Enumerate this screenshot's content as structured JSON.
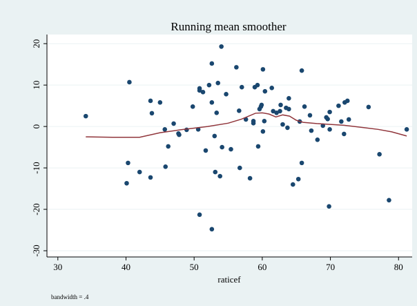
{
  "chart_data": {
    "type": "scatter",
    "title": "Running mean smoother",
    "x_label": "raticef",
    "note": "bandwidth = .4",
    "xlim": [
      28.4,
      82
    ],
    "ylim": [
      -31.5,
      22.2
    ],
    "xticks": [
      30,
      40,
      50,
      60,
      70,
      80
    ],
    "yticks": [
      -30,
      -20,
      -10,
      0,
      10,
      20
    ],
    "grid": true,
    "series": [
      {
        "type": "scatter",
        "color": "#1a476f",
        "x": [
          34.1,
          40.5,
          40.3,
          40.1,
          42.0,
          43.6,
          43.8,
          43.6,
          45.0,
          45.7,
          45.8,
          46.2,
          47.0,
          47.7,
          47.8,
          48.9,
          49.8,
          50.6,
          50.8,
          50.8,
          51.3,
          50.8,
          51.7,
          52.2,
          52.6,
          52.6,
          52.6,
          53.0,
          53.1,
          53.3,
          53.5,
          53.8,
          54.0,
          54.1,
          54.7,
          55.4,
          56.2,
          56.6,
          56.7,
          57.0,
          57.6,
          58.2,
          58.7,
          58.7,
          58.9,
          59.3,
          59.4,
          59.6,
          59.8,
          59.9,
          60.1,
          60.1,
          60.4,
          60.3,
          61.4,
          61.6,
          62.1,
          62.6,
          62.7,
          63.0,
          63.5,
          63.9,
          63.7,
          63.9,
          64.5,
          65.3,
          65.5,
          65.8,
          65.8,
          66.2,
          67.0,
          67.2,
          68.1,
          68.9,
          69.4,
          69.6,
          69.8,
          69.9,
          69.9,
          71.2,
          71.6,
          72.1,
          72.5,
          72.0,
          72.7,
          75.6,
          77.2,
          78.6,
          81.2
        ],
        "values": [
          2.5,
          10.7,
          -8.8,
          -13.7,
          -11,
          6.2,
          3.2,
          -12.3,
          5.8,
          -0.7,
          -9.7,
          -4.8,
          0.7,
          -1.7,
          -2,
          -0.8,
          4.8,
          -0.7,
          9.2,
          8.7,
          8.3,
          -21.3,
          -5.8,
          10,
          5.8,
          15.2,
          -24.8,
          -2.3,
          -11,
          3.3,
          10.5,
          -12,
          19.3,
          -5,
          7.8,
          -5.5,
          14.3,
          3.8,
          -10,
          9.5,
          1.7,
          -12.5,
          0.8,
          1.3,
          9.5,
          10,
          -4.8,
          4.2,
          4.8,
          5.2,
          -1.2,
          13.8,
          8.5,
          1.3,
          9.3,
          3.7,
          3.3,
          3.7,
          5.2,
          0.5,
          4.5,
          4.2,
          -0.3,
          6.8,
          -14,
          -12.7,
          1.2,
          -8.8,
          13.5,
          4.8,
          2.7,
          -1,
          -3.2,
          0.2,
          2.2,
          1.8,
          -19.3,
          -0.7,
          3.5,
          5,
          1.2,
          5.8,
          6.2,
          -1.8,
          1.7,
          4.7,
          -6.7,
          -17.8,
          -0.7
        ]
      },
      {
        "type": "line",
        "color": "#90353b",
        "x": [
          34.1,
          38,
          42,
          45,
          48,
          50,
          52,
          55,
          57,
          59,
          60,
          61,
          62,
          63,
          64,
          65,
          66,
          68,
          70,
          72,
          75,
          77,
          79,
          81.2
        ],
        "values": [
          -2.5,
          -2.6,
          -2.6,
          -1.5,
          -0.8,
          -0.4,
          0,
          0.8,
          1.8,
          3.2,
          3.3,
          3.0,
          2.3,
          2.8,
          2.5,
          1.5,
          1.0,
          0.7,
          0.5,
          0.3,
          -0.3,
          -0.7,
          -1.3,
          -2.3
        ]
      }
    ]
  }
}
